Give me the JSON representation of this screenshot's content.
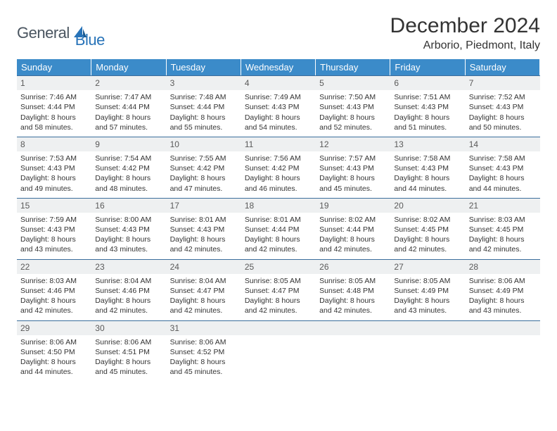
{
  "brand": {
    "part1": "General",
    "part2": "Blue"
  },
  "title": "December 2024",
  "location": "Arborio, Piedmont, Italy",
  "colors": {
    "header_bg": "#3b8bc9",
    "header_text": "#ffffff",
    "row_border": "#3b6e9c",
    "daynum_bg": "#eef0f1",
    "brand_gray": "#4a5560",
    "brand_blue": "#2773b8"
  },
  "weekdays": [
    "Sunday",
    "Monday",
    "Tuesday",
    "Wednesday",
    "Thursday",
    "Friday",
    "Saturday"
  ],
  "days": [
    {
      "n": "1",
      "sunrise": "Sunrise: 7:46 AM",
      "sunset": "Sunset: 4:44 PM",
      "daylight": "Daylight: 8 hours and 58 minutes."
    },
    {
      "n": "2",
      "sunrise": "Sunrise: 7:47 AM",
      "sunset": "Sunset: 4:44 PM",
      "daylight": "Daylight: 8 hours and 57 minutes."
    },
    {
      "n": "3",
      "sunrise": "Sunrise: 7:48 AM",
      "sunset": "Sunset: 4:44 PM",
      "daylight": "Daylight: 8 hours and 55 minutes."
    },
    {
      "n": "4",
      "sunrise": "Sunrise: 7:49 AM",
      "sunset": "Sunset: 4:43 PM",
      "daylight": "Daylight: 8 hours and 54 minutes."
    },
    {
      "n": "5",
      "sunrise": "Sunrise: 7:50 AM",
      "sunset": "Sunset: 4:43 PM",
      "daylight": "Daylight: 8 hours and 52 minutes."
    },
    {
      "n": "6",
      "sunrise": "Sunrise: 7:51 AM",
      "sunset": "Sunset: 4:43 PM",
      "daylight": "Daylight: 8 hours and 51 minutes."
    },
    {
      "n": "7",
      "sunrise": "Sunrise: 7:52 AM",
      "sunset": "Sunset: 4:43 PM",
      "daylight": "Daylight: 8 hours and 50 minutes."
    },
    {
      "n": "8",
      "sunrise": "Sunrise: 7:53 AM",
      "sunset": "Sunset: 4:43 PM",
      "daylight": "Daylight: 8 hours and 49 minutes."
    },
    {
      "n": "9",
      "sunrise": "Sunrise: 7:54 AM",
      "sunset": "Sunset: 4:42 PM",
      "daylight": "Daylight: 8 hours and 48 minutes."
    },
    {
      "n": "10",
      "sunrise": "Sunrise: 7:55 AM",
      "sunset": "Sunset: 4:42 PM",
      "daylight": "Daylight: 8 hours and 47 minutes."
    },
    {
      "n": "11",
      "sunrise": "Sunrise: 7:56 AM",
      "sunset": "Sunset: 4:42 PM",
      "daylight": "Daylight: 8 hours and 46 minutes."
    },
    {
      "n": "12",
      "sunrise": "Sunrise: 7:57 AM",
      "sunset": "Sunset: 4:43 PM",
      "daylight": "Daylight: 8 hours and 45 minutes."
    },
    {
      "n": "13",
      "sunrise": "Sunrise: 7:58 AM",
      "sunset": "Sunset: 4:43 PM",
      "daylight": "Daylight: 8 hours and 44 minutes."
    },
    {
      "n": "14",
      "sunrise": "Sunrise: 7:58 AM",
      "sunset": "Sunset: 4:43 PM",
      "daylight": "Daylight: 8 hours and 44 minutes."
    },
    {
      "n": "15",
      "sunrise": "Sunrise: 7:59 AM",
      "sunset": "Sunset: 4:43 PM",
      "daylight": "Daylight: 8 hours and 43 minutes."
    },
    {
      "n": "16",
      "sunrise": "Sunrise: 8:00 AM",
      "sunset": "Sunset: 4:43 PM",
      "daylight": "Daylight: 8 hours and 43 minutes."
    },
    {
      "n": "17",
      "sunrise": "Sunrise: 8:01 AM",
      "sunset": "Sunset: 4:43 PM",
      "daylight": "Daylight: 8 hours and 42 minutes."
    },
    {
      "n": "18",
      "sunrise": "Sunrise: 8:01 AM",
      "sunset": "Sunset: 4:44 PM",
      "daylight": "Daylight: 8 hours and 42 minutes."
    },
    {
      "n": "19",
      "sunrise": "Sunrise: 8:02 AM",
      "sunset": "Sunset: 4:44 PM",
      "daylight": "Daylight: 8 hours and 42 minutes."
    },
    {
      "n": "20",
      "sunrise": "Sunrise: 8:02 AM",
      "sunset": "Sunset: 4:45 PM",
      "daylight": "Daylight: 8 hours and 42 minutes."
    },
    {
      "n": "21",
      "sunrise": "Sunrise: 8:03 AM",
      "sunset": "Sunset: 4:45 PM",
      "daylight": "Daylight: 8 hours and 42 minutes."
    },
    {
      "n": "22",
      "sunrise": "Sunrise: 8:03 AM",
      "sunset": "Sunset: 4:46 PM",
      "daylight": "Daylight: 8 hours and 42 minutes."
    },
    {
      "n": "23",
      "sunrise": "Sunrise: 8:04 AM",
      "sunset": "Sunset: 4:46 PM",
      "daylight": "Daylight: 8 hours and 42 minutes."
    },
    {
      "n": "24",
      "sunrise": "Sunrise: 8:04 AM",
      "sunset": "Sunset: 4:47 PM",
      "daylight": "Daylight: 8 hours and 42 minutes."
    },
    {
      "n": "25",
      "sunrise": "Sunrise: 8:05 AM",
      "sunset": "Sunset: 4:47 PM",
      "daylight": "Daylight: 8 hours and 42 minutes."
    },
    {
      "n": "26",
      "sunrise": "Sunrise: 8:05 AM",
      "sunset": "Sunset: 4:48 PM",
      "daylight": "Daylight: 8 hours and 42 minutes."
    },
    {
      "n": "27",
      "sunrise": "Sunrise: 8:05 AM",
      "sunset": "Sunset: 4:49 PM",
      "daylight": "Daylight: 8 hours and 43 minutes."
    },
    {
      "n": "28",
      "sunrise": "Sunrise: 8:06 AM",
      "sunset": "Sunset: 4:49 PM",
      "daylight": "Daylight: 8 hours and 43 minutes."
    },
    {
      "n": "29",
      "sunrise": "Sunrise: 8:06 AM",
      "sunset": "Sunset: 4:50 PM",
      "daylight": "Daylight: 8 hours and 44 minutes."
    },
    {
      "n": "30",
      "sunrise": "Sunrise: 8:06 AM",
      "sunset": "Sunset: 4:51 PM",
      "daylight": "Daylight: 8 hours and 45 minutes."
    },
    {
      "n": "31",
      "sunrise": "Sunrise: 8:06 AM",
      "sunset": "Sunset: 4:52 PM",
      "daylight": "Daylight: 8 hours and 45 minutes."
    }
  ],
  "trailing_empty": 4
}
